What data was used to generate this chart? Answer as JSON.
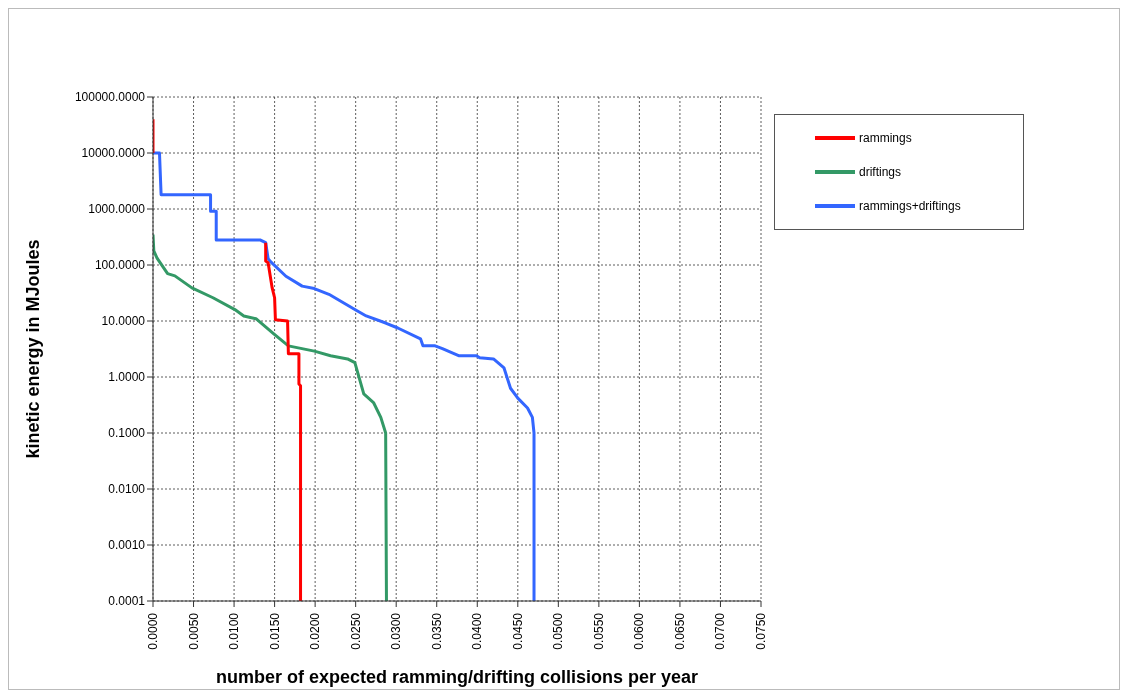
{
  "chart_data": {
    "type": "line",
    "xlabel": "number of expected ramming/drifting collisions per year",
    "ylabel": "kinetic energy in MJoules",
    "log": "y",
    "grid": true,
    "legend": "top right",
    "marker": "none",
    "line_style": "solid",
    "xlim": [
      0,
      0.075
    ],
    "xticks": [
      {
        "value": 0,
        "label": "0.0000"
      },
      {
        "value": 0.005,
        "label": "0.0050"
      },
      {
        "value": 0.01,
        "label": "0.0100"
      },
      {
        "value": 0.015,
        "label": "0.0150"
      },
      {
        "value": 0.02,
        "label": "0.0200"
      },
      {
        "value": 0.025,
        "label": "0.0250"
      },
      {
        "value": 0.03,
        "label": "0.0300"
      },
      {
        "value": 0.035,
        "label": "0.0350"
      },
      {
        "value": 0.04,
        "label": "0.0400"
      },
      {
        "value": 0.045,
        "label": "0.0450"
      },
      {
        "value": 0.05,
        "label": "0.0500"
      },
      {
        "value": 0.055,
        "label": "0.0550"
      },
      {
        "value": 0.06,
        "label": "0.0600"
      },
      {
        "value": 0.065,
        "label": "0.0650"
      },
      {
        "value": 0.07,
        "label": "0.0700"
      },
      {
        "value": 0.075,
        "label": "0.0750"
      }
    ],
    "ylim": [
      0.0001,
      100000
    ],
    "yticks": [
      {
        "value": 0.0001,
        "label": "0.0001"
      },
      {
        "value": 0.001,
        "label": "0.0010"
      },
      {
        "value": 0.01,
        "label": "0.0100"
      },
      {
        "value": 0.1,
        "label": "0.1000"
      },
      {
        "value": 1,
        "label": "1.0000"
      },
      {
        "value": 10,
        "label": "10.0000"
      },
      {
        "value": 100,
        "label": "100.0000"
      },
      {
        "value": 1000,
        "label": "1000.0000"
      },
      {
        "value": 10000,
        "label": "10000.0000"
      },
      {
        "value": 100000,
        "label": "100000.0000"
      }
    ],
    "series": [
      {
        "name": "rammings",
        "color": "#ff0000",
        "x": [
          0,
          0,
          null,
          0.0139,
          0.0139,
          0.0142,
          0.0147,
          0.015,
          0.0151,
          0.0166,
          0.0167,
          0.018,
          0.018,
          0.0182,
          0.0182
        ],
        "values": [
          40000,
          10000,
          null,
          250,
          118,
          110,
          39,
          26,
          10.5,
          10,
          2.6,
          2.6,
          0.75,
          0.7,
          0.0001
        ]
      },
      {
        "name": "driftings",
        "color": "#339966",
        "x": [
          0,
          0.0001,
          0.0005,
          0.0018,
          0.0027,
          0.0048,
          0.0074,
          0.0101,
          0.0112,
          0.0127,
          0.0149,
          0.0167,
          0.0199,
          0.0219,
          0.024,
          0.0249,
          0.026,
          0.0272,
          0.0281,
          0.0287,
          0.0288
        ],
        "values": [
          350,
          178,
          133,
          70,
          64,
          39,
          26,
          16,
          12.3,
          11,
          5.9,
          3.6,
          2.9,
          2.4,
          2.1,
          1.8,
          0.5,
          0.35,
          0.19,
          0.1,
          0.0001
        ]
      },
      {
        "name": "rammings+driftings",
        "color": "#3366ff",
        "x": [
          0,
          0.0008,
          0.001,
          0.0071,
          0.0071,
          0.0078,
          0.0078,
          0.0132,
          0.0139,
          0.0142,
          0.0145,
          0.0164,
          0.0184,
          0.0199,
          0.0217,
          0.0249,
          0.0263,
          0.0287,
          0.0302,
          0.033,
          0.0333,
          0.0348,
          0.0357,
          0.0377,
          0.0399,
          0.0403,
          0.042,
          0.0433,
          0.0441,
          0.045,
          0.0462,
          0.0468,
          0.047,
          0.047
        ],
        "values": [
          10000,
          10000,
          1800,
          1800,
          910,
          910,
          280,
          280,
          250,
          130,
          115,
          63,
          42,
          38,
          30,
          16,
          12.3,
          9.2,
          7.5,
          4.8,
          3.6,
          3.6,
          3.2,
          2.4,
          2.4,
          2.2,
          2.1,
          1.45,
          0.63,
          0.42,
          0.28,
          0.19,
          0.1,
          0.0001
        ]
      }
    ]
  }
}
